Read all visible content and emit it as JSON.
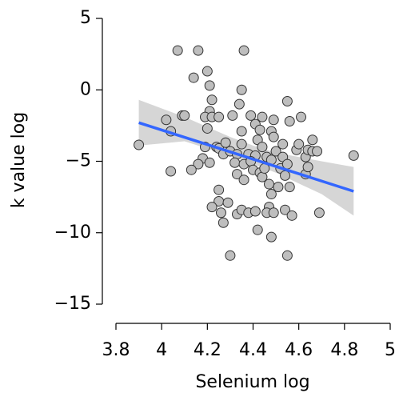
{
  "chart_data": {
    "type": "scatter",
    "xlabel": "Selenium log",
    "ylabel": "k value log",
    "x": [
      3.9,
      4.02,
      4.04,
      4.04,
      4.07,
      4.09,
      4.1,
      4.16,
      4.14,
      4.2,
      4.21,
      4.22,
      4.21,
      4.19,
      4.22,
      4.25,
      4.2,
      4.19,
      4.18,
      4.16,
      4.13,
      4.21,
      4.24,
      4.25,
      4.27,
      4.28,
      4.3,
      4.33,
      4.32,
      4.25,
      4.25,
      4.22,
      4.26,
      4.29,
      4.27,
      4.3,
      4.36,
      4.35,
      4.34,
      4.31,
      4.35,
      4.35,
      4.38,
      4.36,
      4.33,
      4.36,
      4.33,
      4.35,
      4.39,
      4.41,
      4.43,
      4.44,
      4.42,
      4.44,
      4.41,
      4.39,
      4.4,
      4.43,
      4.44,
      4.45,
      4.46,
      4.49,
      4.48,
      4.49,
      4.5,
      4.48,
      4.47,
      4.48,
      4.47,
      4.38,
      4.41,
      4.42,
      4.46,
      4.49,
      4.48,
      4.51,
      4.53,
      4.53,
      4.52,
      4.55,
      4.56,
      4.55,
      4.54,
      4.56,
      4.54,
      4.57,
      4.55,
      4.59,
      4.6,
      4.61,
      4.63,
      4.63,
      4.64,
      4.66,
      4.64,
      4.66,
      4.68,
      4.69,
      4.84
    ],
    "y": [
      -3.85,
      -2.1,
      -2.9,
      -5.7,
      2.75,
      -1.8,
      -1.8,
      2.75,
      0.85,
      1.3,
      0.3,
      -0.7,
      -1.5,
      -1.9,
      -1.9,
      -1.9,
      -2.7,
      -4,
      -4.8,
      -5.2,
      -5.6,
      -5.1,
      -4,
      -4.1,
      -4.5,
      -3.7,
      -4.3,
      -4.5,
      -5.1,
      -7,
      -7.8,
      -8.2,
      -8.6,
      -7.9,
      -9.3,
      -11.6,
      2.75,
      0,
      -1,
      -1.8,
      -2.9,
      -3.8,
      -4.5,
      -5.2,
      -5.9,
      -6.3,
      -8.7,
      -8.4,
      -1.8,
      -2.4,
      -2.8,
      -1.9,
      -3.5,
      -4,
      -4.6,
      -5,
      -5.6,
      -5.8,
      -6.1,
      -5.5,
      -4.7,
      -2.1,
      -2.9,
      -3.3,
      -4.3,
      -4.9,
      -6.6,
      -7.3,
      -8.2,
      -8.6,
      -8.5,
      -9.8,
      -8.6,
      -8.6,
      -10.3,
      -6.8,
      -3.8,
      -4.7,
      -5.5,
      -0.8,
      -2.2,
      -5.2,
      -6,
      -6.8,
      -8.4,
      -8.8,
      -11.6,
      -4.2,
      -3.8,
      -1.9,
      -4.7,
      -5.9,
      -5.4,
      -3.5,
      -4.2,
      -4.3,
      -4.3,
      -8.6,
      -4.6
    ],
    "point_color": "#bebebe",
    "fit": {
      "x": [
        3.9,
        4.84
      ],
      "y": [
        -2.3,
        -7.1
      ],
      "color": "#3366ff"
    },
    "band": {
      "x": [
        3.9,
        4.1,
        4.3,
        4.4,
        4.5,
        4.7,
        4.84
      ],
      "lower": [
        -3.9,
        -3.6,
        -4.6,
        -5.2,
        -5.8,
        -7.3,
        -8.8
      ],
      "upper": [
        -0.7,
        -1.9,
        -3.3,
        -3.9,
        -4.4,
        -5.0,
        -5.4
      ],
      "color": "#cccccc"
    },
    "xlim": [
      3.8,
      5
    ],
    "ylim": [
      -15,
      5
    ],
    "xticks": [
      3.8,
      4,
      4.2,
      4.4,
      4.6,
      4.8,
      5
    ],
    "yticks": [
      5,
      0,
      {
        "value": -5,
        "label": "−5"
      },
      {
        "value": -10,
        "label": "−10"
      },
      {
        "value": -15,
        "label": "−15"
      }
    ]
  }
}
